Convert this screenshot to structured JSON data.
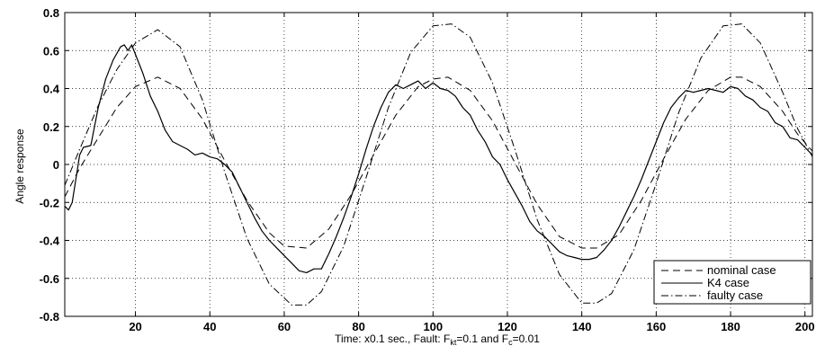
{
  "chart_data": {
    "type": "line",
    "title": "",
    "ylabel": "Angle response",
    "xlabel": {
      "prefix": "Time: x0.1 sec., Fault:  F",
      "sub1": "kt",
      "mid": "=0.1 and F",
      "sub2": "c",
      "suffix": "=0.01"
    },
    "xlim": [
      1,
      202
    ],
    "ylim": [
      -0.8,
      0.8
    ],
    "xticks": [
      20,
      40,
      60,
      80,
      100,
      120,
      140,
      160,
      180,
      200
    ],
    "yticks": [
      -0.8,
      -0.6,
      -0.4,
      -0.2,
      0,
      0.2,
      0.4,
      0.6,
      0.8
    ],
    "grid": true,
    "legend_position": "bottom-right",
    "series": [
      {
        "name": "nominal case",
        "style": "dashed",
        "x": [
          1,
          5,
          10,
          15,
          20,
          26,
          32,
          38,
          44,
          50,
          56,
          60,
          66,
          72,
          78,
          84,
          90,
          96,
          100,
          104,
          110,
          116,
          122,
          128,
          134,
          140,
          144,
          150,
          156,
          162,
          168,
          174,
          180,
          183,
          188,
          194,
          198,
          202
        ],
        "y": [
          -0.17,
          -0.02,
          0.14,
          0.3,
          0.41,
          0.46,
          0.4,
          0.24,
          0.02,
          -0.19,
          -0.36,
          -0.43,
          -0.44,
          -0.34,
          -0.16,
          0.05,
          0.26,
          0.41,
          0.45,
          0.46,
          0.39,
          0.23,
          0.01,
          -0.21,
          -0.38,
          -0.44,
          -0.44,
          -0.37,
          -0.19,
          0.03,
          0.24,
          0.39,
          0.46,
          0.46,
          0.41,
          0.28,
          0.16,
          0.07
        ]
      },
      {
        "name": "K4 case",
        "style": "solid",
        "x": [
          1,
          2,
          3,
          5,
          6,
          8,
          10,
          12,
          14,
          16,
          17,
          18,
          19,
          20,
          22,
          24,
          26,
          28,
          30,
          32,
          34,
          36,
          38,
          40,
          42,
          44,
          46,
          48,
          50,
          52,
          54,
          56,
          58,
          60,
          62,
          64,
          66,
          68,
          70,
          72,
          74,
          76,
          78,
          80,
          82,
          84,
          86,
          88,
          90,
          92,
          94,
          96,
          98,
          100,
          102,
          104,
          106,
          108,
          110,
          112,
          114,
          116,
          118,
          120,
          122,
          124,
          126,
          128,
          130,
          132,
          134,
          136,
          138,
          140,
          142,
          144,
          146,
          148,
          150,
          152,
          154,
          156,
          158,
          160,
          162,
          164,
          166,
          168,
          170,
          172,
          174,
          176,
          178,
          180,
          182,
          184,
          186,
          188,
          190,
          192,
          194,
          196,
          198,
          200,
          202
        ],
        "y": [
          -0.22,
          -0.24,
          -0.2,
          0.05,
          0.09,
          0.1,
          0.3,
          0.45,
          0.55,
          0.62,
          0.63,
          0.6,
          0.63,
          0.58,
          0.48,
          0.36,
          0.28,
          0.18,
          0.12,
          0.1,
          0.08,
          0.05,
          0.06,
          0.04,
          0.03,
          0.0,
          -0.04,
          -0.12,
          -0.2,
          -0.28,
          -0.35,
          -0.4,
          -0.44,
          -0.48,
          -0.52,
          -0.56,
          -0.57,
          -0.55,
          -0.55,
          -0.47,
          -0.38,
          -0.28,
          -0.17,
          -0.05,
          0.08,
          0.2,
          0.3,
          0.38,
          0.42,
          0.4,
          0.42,
          0.44,
          0.4,
          0.43,
          0.4,
          0.39,
          0.36,
          0.3,
          0.26,
          0.18,
          0.12,
          0.04,
          0.0,
          -0.08,
          -0.15,
          -0.22,
          -0.3,
          -0.35,
          -0.38,
          -0.42,
          -0.46,
          -0.48,
          -0.49,
          -0.5,
          -0.5,
          -0.49,
          -0.45,
          -0.4,
          -0.33,
          -0.25,
          -0.17,
          -0.08,
          0.02,
          0.12,
          0.22,
          0.3,
          0.35,
          0.39,
          0.38,
          0.39,
          0.4,
          0.39,
          0.38,
          0.41,
          0.4,
          0.36,
          0.34,
          0.3,
          0.28,
          0.22,
          0.2,
          0.14,
          0.13,
          0.09,
          0.05
        ]
      },
      {
        "name": "faulty case",
        "style": "dashdot",
        "x": [
          1,
          5,
          10,
          15,
          20,
          26,
          32,
          38,
          44,
          50,
          56,
          62,
          66,
          70,
          76,
          82,
          88,
          94,
          100,
          105,
          110,
          116,
          122,
          128,
          134,
          140,
          144,
          148,
          154,
          160,
          166,
          172,
          178,
          183,
          188,
          194,
          198,
          202
        ],
        "y": [
          -0.11,
          0.08,
          0.31,
          0.5,
          0.64,
          0.71,
          0.62,
          0.34,
          -0.04,
          -0.39,
          -0.63,
          -0.74,
          -0.74,
          -0.67,
          -0.43,
          -0.07,
          0.3,
          0.59,
          0.73,
          0.74,
          0.67,
          0.43,
          0.08,
          -0.29,
          -0.58,
          -0.73,
          -0.73,
          -0.68,
          -0.45,
          -0.1,
          0.27,
          0.56,
          0.73,
          0.74,
          0.64,
          0.38,
          0.19,
          0.04
        ]
      }
    ]
  }
}
